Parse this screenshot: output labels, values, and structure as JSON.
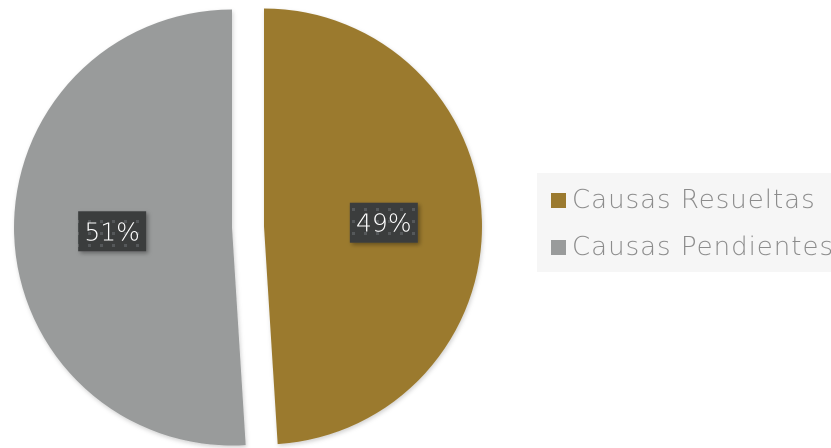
{
  "chart_data": {
    "type": "pie",
    "title": "",
    "slices": [
      {
        "name": "Causas Resueltas",
        "value": 49,
        "label": "49%",
        "color": "#9b7a2f"
      },
      {
        "name": "Causas Pendientes",
        "value": 51,
        "label": "51%",
        "color": "#999b9b"
      }
    ],
    "exploded": true,
    "legend_position": "right",
    "data_label_style": "dark-box"
  }
}
